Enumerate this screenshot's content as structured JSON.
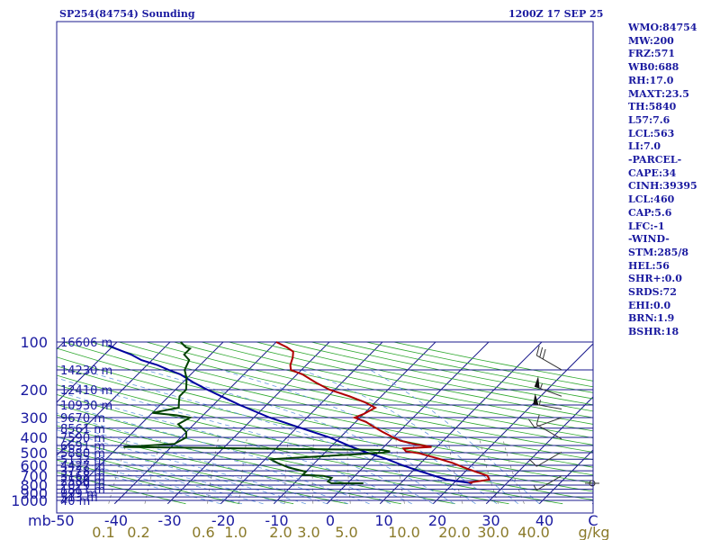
{
  "header": {
    "title": "SP254(84754) Sounding",
    "time": "1200Z 17 SEP 25"
  },
  "indices": [
    "WMO:84754",
    "MW:200",
    "FRZ:571",
    "WB0:688",
    "RH:17.0",
    "MAXT:23.5",
    "TH:5840",
    "L57:7.6",
    "LCL:563",
    "LI:7.0",
    "-PARCEL-",
    "CAPE:34",
    "CINH:39395",
    "LCL:460",
    "CAP:5.6",
    "LFC:-1",
    "-WIND-",
    "STM:285/8",
    "HEL:56",
    "SHR+:0.0",
    "SRDS:72",
    "EHI:0.0",
    "BRN:1.9",
    "BSHR:18"
  ],
  "colors": {
    "isobar": "#1a1a8c",
    "isotherm": "#1a1a8c",
    "dry_adiabat": "#2fa82f",
    "moist_adiabat": "#6699dd",
    "mixing_ratio": "#888888",
    "temperature": "#b00000",
    "dewpoint": "#004000",
    "parcel": "#0000a0"
  },
  "chart_data": {
    "type": "skew-t log-p",
    "y_axis_label": "mb",
    "x_axis_label": "C",
    "mixing_ratio_unit": "g/kg",
    "pressure_ticks": [
      {
        "p": 100,
        "label": "100"
      },
      {
        "p": 200,
        "label": "200"
      },
      {
        "p": 300,
        "label": "300"
      },
      {
        "p": 400,
        "label": "400"
      },
      {
        "p": 500,
        "label": "500"
      },
      {
        "p": 600,
        "label": "600"
      },
      {
        "p": 700,
        "label": "700"
      },
      {
        "p": 800,
        "label": "800"
      },
      {
        "p": 900,
        "label": "900"
      },
      {
        "p": 1000,
        "label": "1000"
      }
    ],
    "temperature_ticks": [
      {
        "t": -50,
        "label": "-50"
      },
      {
        "t": -40,
        "label": "-40"
      },
      {
        "t": -30,
        "label": "-30"
      },
      {
        "t": -20,
        "label": "-20"
      },
      {
        "t": -10,
        "label": "-10"
      },
      {
        "t": 0,
        "label": "0"
      },
      {
        "t": 10,
        "label": "10"
      },
      {
        "t": 20,
        "label": "20"
      },
      {
        "t": 30,
        "label": "30"
      },
      {
        "t": 40,
        "label": "40"
      }
    ],
    "mixing_ratio_labels": [
      "0.1",
      "0.2",
      "0.6",
      "1.0",
      "2.0",
      "3.0",
      "5.0",
      "10.0",
      "20.0",
      "30.0",
      "40.0"
    ],
    "height_labels": [
      {
        "p": 100,
        "label": "16606 m"
      },
      {
        "p": 150,
        "label": "14230 m"
      },
      {
        "p": 200,
        "label": "12410 m"
      },
      {
        "p": 250,
        "label": "10930 m"
      },
      {
        "p": 300,
        "label": "9670 m"
      },
      {
        "p": 350,
        "label": "8561 m"
      },
      {
        "p": 400,
        "label": "7590 m"
      },
      {
        "p": 450,
        "label": "6691 m"
      },
      {
        "p": 500,
        "label": "5880 m"
      },
      {
        "p": 550,
        "label": "5132 m"
      },
      {
        "p": 600,
        "label": "4427 m"
      },
      {
        "p": 650,
        "label": "3778 m"
      },
      {
        "p": 700,
        "label": "3168 m"
      },
      {
        "p": 750,
        "label": "2580 m"
      },
      {
        "p": 800,
        "label": "2029 m"
      },
      {
        "p": 850,
        "label": "1511 m"
      },
      {
        "p": 900,
        "label": "999 m"
      },
      {
        "p": 950,
        "label": "513 m"
      },
      {
        "p": 1000,
        "label": "40 m"
      }
    ],
    "temperature_profile": [
      [
        780,
        23.5
      ],
      [
        770,
        23
      ],
      [
        740,
        26
      ],
      [
        700,
        25
      ],
      [
        660,
        22
      ],
      [
        620,
        19
      ],
      [
        580,
        16
      ],
      [
        540,
        12
      ],
      [
        505,
        8
      ],
      [
        490,
        5
      ],
      [
        470,
        4
      ],
      [
        460,
        9
      ],
      [
        440,
        5
      ],
      [
        420,
        2
      ],
      [
        400,
        0
      ],
      [
        370,
        -3
      ],
      [
        340,
        -6
      ],
      [
        320,
        -8
      ],
      [
        300,
        -11
      ],
      [
        285,
        -10
      ],
      [
        260,
        -9
      ],
      [
        240,
        -12
      ],
      [
        220,
        -16
      ],
      [
        200,
        -21
      ],
      [
        180,
        -25
      ],
      [
        160,
        -29
      ],
      [
        150,
        -32
      ],
      [
        140,
        -33
      ],
      [
        125,
        -34
      ],
      [
        115,
        -35
      ],
      [
        108,
        -37
      ],
      [
        100,
        -40
      ]
    ],
    "dewpoint_profile": [
      [
        780,
        3
      ],
      [
        780,
        -3
      ],
      [
        760,
        -4
      ],
      [
        720,
        -4
      ],
      [
        700,
        -6
      ],
      [
        690,
        -10
      ],
      [
        660,
        -10
      ],
      [
        620,
        -14
      ],
      [
        580,
        -17
      ],
      [
        550,
        -19
      ],
      [
        500,
        1
      ],
      [
        490,
        2
      ],
      [
        480,
        0
      ],
      [
        470,
        -25
      ],
      [
        460,
        -49
      ],
      [
        440,
        -40
      ],
      [
        400,
        -39
      ],
      [
        370,
        -40
      ],
      [
        330,
        -43
      ],
      [
        300,
        -42
      ],
      [
        290,
        -45
      ],
      [
        280,
        -50
      ],
      [
        260,
        -46
      ],
      [
        240,
        -47
      ],
      [
        220,
        -48
      ],
      [
        200,
        -48
      ],
      [
        170,
        -50
      ],
      [
        150,
        -52
      ],
      [
        130,
        -53
      ],
      [
        120,
        -55
      ],
      [
        110,
        -55
      ],
      [
        108,
        -56
      ],
      [
        104,
        -57
      ],
      [
        100,
        -58
      ]
    ],
    "parcel_profile": [
      [
        780,
        23.5
      ],
      [
        740,
        18
      ],
      [
        700,
        15
      ],
      [
        650,
        11
      ],
      [
        600,
        7
      ],
      [
        550,
        3
      ],
      [
        500,
        -2
      ],
      [
        460,
        -6
      ],
      [
        400,
        -12
      ],
      [
        350,
        -19
      ],
      [
        300,
        -27
      ],
      [
        250,
        -35
      ],
      [
        200,
        -44
      ],
      [
        180,
        -48
      ],
      [
        160,
        -52
      ],
      [
        150,
        -55
      ],
      [
        140,
        -58
      ],
      [
        130,
        -62
      ],
      [
        120,
        -65
      ],
      [
        110,
        -69
      ],
      [
        105,
        -71
      ]
    ],
    "wind_barbs": [
      {
        "p": 150,
        "dir": 300,
        "speed": 30
      },
      {
        "p": 220,
        "dir": 290,
        "speed": 55
      },
      {
        "p": 265,
        "dir": 280,
        "speed": 55
      },
      {
        "p": 300,
        "dir": 250,
        "speed": 10
      },
      {
        "p": 410,
        "dir": 300,
        "speed": 10
      },
      {
        "p": 495,
        "dir": 240,
        "speed": 10
      },
      {
        "p": 700,
        "dir": 240,
        "speed": 5
      }
    ],
    "surface_marker_pressure": 780
  }
}
